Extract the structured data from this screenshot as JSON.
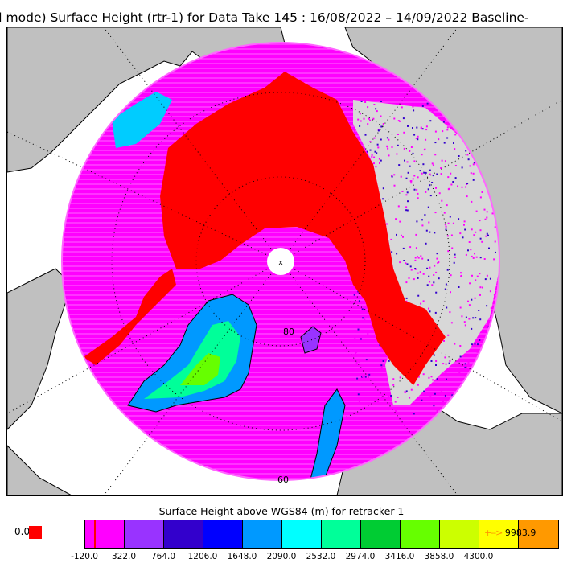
{
  "title": "ll mode) Surface Height (rtr-1) for Data Take 145 : 16/08/2022 – 14/09/2022 Baseline-",
  "map": {
    "projection": "north-polar-stereographic",
    "latitude_labels": [
      "80",
      "60"
    ],
    "pole_marker": "x",
    "colors": {
      "land": "#c0c0c0",
      "ocean": "#ffffff",
      "sea_ice": "#ff00ff",
      "ocean_out_of_range": "#ff0000",
      "graticule": "#000000"
    }
  },
  "colorbar": {
    "title": "Surface Height above WGS84 (m) for retracker 1",
    "nodata_label": "0.0",
    "nodata_color": "#ff0000",
    "colors": [
      "#ff00ff",
      "#9933ff",
      "#3300cc",
      "#0000ff",
      "#0099ff",
      "#00ffff",
      "#00ff99",
      "#00cc33",
      "#66ff00",
      "#ccff00",
      "#ffff00",
      "#ff9900"
    ],
    "ticks": [
      "-120.0",
      "322.0",
      "764.0",
      "1206.0",
      "1648.0",
      "2090.0",
      "2532.0",
      "2974.0",
      "3416.0",
      "3858.0",
      "4300.0"
    ],
    "overflow_value": "9983.9",
    "overflow_color": "#ff9900"
  }
}
